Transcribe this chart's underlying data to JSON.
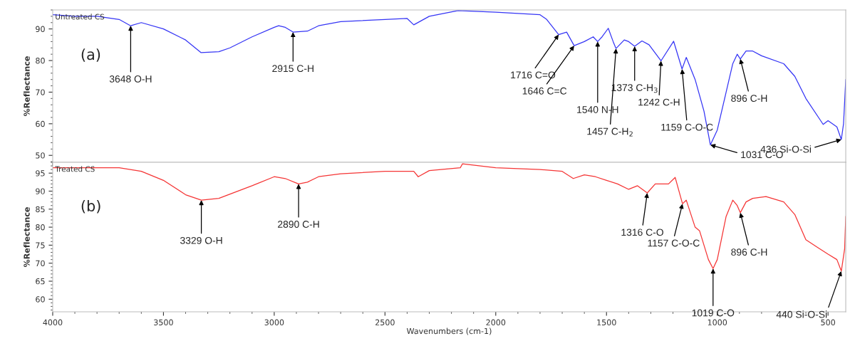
{
  "chart_data": [
    {
      "type": "line",
      "title": "Untreated CS",
      "ylabel": "%Reflectance",
      "xlim": [
        4000,
        420
      ],
      "ylim": [
        47.8,
        96
      ],
      "yticks": [
        50,
        60,
        70,
        80,
        90
      ],
      "tick_labels": "y",
      "grid": false,
      "legend": false,
      "series": [
        {
          "color": "#3535f5",
          "x": [
            4000,
            3900,
            3800,
            3700,
            3648,
            3600,
            3500,
            3400,
            3330,
            3250,
            3200,
            3100,
            3000,
            2980,
            2950,
            2915,
            2850,
            2800,
            2700,
            2500,
            2400,
            2370,
            2300,
            2170,
            2000,
            1800,
            1770,
            1716,
            1680,
            1646,
            1600,
            1560,
            1540,
            1520,
            1492,
            1470,
            1457,
            1420,
            1400,
            1373,
            1340,
            1308,
            1254,
            1197,
            1159,
            1140,
            1100,
            1060,
            1031,
            1000,
            960,
            930,
            910,
            896,
            870,
            840,
            800,
            700,
            650,
            600,
            522,
            500,
            460,
            440,
            430,
            420
          ],
          "values": [
            94.5,
            94,
            94,
            93,
            91,
            92,
            90,
            86.5,
            82.5,
            82.8,
            84,
            87.5,
            90.5,
            91,
            90.5,
            89,
            89.3,
            91,
            92.3,
            93,
            93.3,
            91.3,
            94,
            95.8,
            95.3,
            94.5,
            93,
            88.2,
            89,
            84.7,
            86,
            87.5,
            86,
            87.5,
            90.2,
            86,
            83.8,
            86.5,
            86,
            84.5,
            86.2,
            85,
            79.9,
            86.1,
            77.3,
            81,
            74,
            64,
            53.3,
            58,
            70,
            79,
            82,
            80.5,
            83,
            83,
            81.5,
            79,
            75,
            68,
            59.8,
            61,
            59,
            55,
            60,
            74
          ]
        }
      ],
      "annotations": [
        "(a)",
        {
          "text": "3648 O-H",
          "x": 3648,
          "y": 91
        },
        {
          "text": "2915 C-H",
          "x": 2915,
          "y": 89
        },
        {
          "text": "1716 C=O",
          "x": 1716,
          "y": 88.2
        },
        {
          "text": "1646 C=C",
          "x": 1646,
          "y": 84.7
        },
        {
          "text": "1540 N-H",
          "x": 1540,
          "y": 86
        },
        {
          "text": "1457 C-H$_{2}$",
          "x": 1457,
          "y": 83.8
        },
        {
          "text": "1373 C-H$_{3}$",
          "x": 1373,
          "y": 84.5
        },
        {
          "text": "1242 C-H",
          "x": 1254,
          "y": 79.9
        },
        {
          "text": "1159 C-O-C",
          "x": 1159,
          "y": 77.3
        },
        {
          "text": "1031 C-O",
          "x": 1031,
          "y": 53.3
        },
        {
          "text": "896 C-H",
          "x": 896,
          "y": 80.5
        },
        {
          "text": "436 Si-O-Si",
          "x": 440,
          "y": 55
        }
      ]
    },
    {
      "type": "line",
      "title": "Treated CS",
      "xlabel": "Wavenumbers (cm-1)",
      "ylabel": "%Reflectance",
      "xlim": [
        4000,
        420
      ],
      "ylim": [
        56.5,
        98
      ],
      "xticks": [
        4000,
        3500,
        3000,
        2500,
        2000,
        1500,
        1000,
        500
      ],
      "yticks": [
        60,
        65,
        70,
        75,
        80,
        85,
        90,
        95
      ],
      "grid": false,
      "legend": false,
      "series": [
        {
          "color": "#f53535",
          "x": [
            4000,
            3800,
            3700,
            3600,
            3500,
            3400,
            3329,
            3250,
            3100,
            3000,
            2950,
            2890,
            2850,
            2800,
            2700,
            2500,
            2370,
            2350,
            2300,
            2160,
            2150,
            2000,
            1800,
            1700,
            1650,
            1600,
            1550,
            1500,
            1450,
            1400,
            1360,
            1316,
            1280,
            1220,
            1190,
            1157,
            1140,
            1100,
            1080,
            1040,
            1019,
            1000,
            960,
            930,
            910,
            896,
            870,
            840,
            780,
            700,
            650,
            600,
            550,
            500,
            460,
            440,
            425,
            420
          ],
          "values": [
            96.5,
            96.5,
            96.5,
            95.5,
            93,
            89,
            87.5,
            88,
            91.5,
            94,
            93.5,
            92,
            92.5,
            94,
            94.8,
            95.5,
            95.5,
            94,
            95.7,
            96.5,
            97.6,
            96.5,
            96,
            95.5,
            93.5,
            94.5,
            94,
            93,
            92,
            90.5,
            91.5,
            89.5,
            92,
            92,
            93.8,
            86.5,
            87.5,
            80,
            79,
            71,
            68.5,
            71,
            83,
            87.5,
            86,
            84,
            87,
            88,
            88.5,
            87,
            83.5,
            76.5,
            74.5,
            72.5,
            71,
            67.8,
            74,
            83
          ]
        }
      ],
      "annotations": [
        "(b)",
        {
          "text": "3329 O-H",
          "x": 3329,
          "y": 87.5
        },
        {
          "text": "2890 C-H",
          "x": 2890,
          "y": 92
        },
        {
          "text": "1316 C-O",
          "x": 1316,
          "y": 89.5
        },
        {
          "text": "1157 C-O-C",
          "x": 1157,
          "y": 86.5
        },
        {
          "text": "896 C-H",
          "x": 896,
          "y": 84
        },
        {
          "text": "1019 C-O",
          "x": 1019,
          "y": 68.5
        },
        {
          "text": "440 Si-O-Si",
          "x": 440,
          "y": 67.8
        }
      ]
    }
  ]
}
